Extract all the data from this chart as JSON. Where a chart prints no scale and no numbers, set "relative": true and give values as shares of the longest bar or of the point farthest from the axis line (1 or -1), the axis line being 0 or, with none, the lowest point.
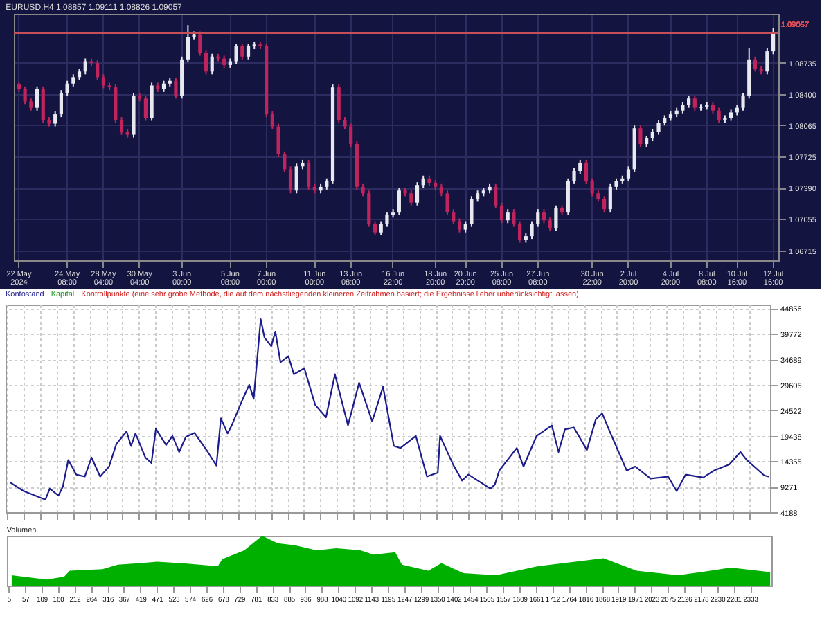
{
  "chart_data": [
    {
      "type": "candlestick",
      "title": "EURUSD,H4  1.08857 1.09111 1.08826 1.09057",
      "categories": [
        "22 May 2024",
        null,
        null,
        null,
        null,
        null,
        null,
        null,
        "24 May 08:00",
        null,
        null,
        null,
        null,
        null,
        "28 May 04:00",
        null,
        null,
        null,
        null,
        null,
        "30 May 04:00",
        null,
        null,
        null,
        null,
        null,
        null,
        "3 Jun 00:00",
        null,
        null,
        null,
        null,
        null,
        null,
        null,
        "5 Jun 08:00",
        null,
        null,
        null,
        null,
        null,
        "7 Jun 00:00",
        null,
        null,
        null,
        null,
        null,
        null,
        null,
        "11 Jun 00:00",
        null,
        null,
        null,
        null,
        null,
        "13 Jun 08:00",
        null,
        null,
        null,
        null,
        null,
        null,
        "16 Jun 22:00",
        null,
        null,
        null,
        null,
        null,
        null,
        "18 Jun 20:00",
        null,
        null,
        null,
        null,
        "20 Jun 20:00",
        null,
        null,
        null,
        null,
        null,
        "25 Jun 08:00",
        null,
        null,
        null,
        null,
        null,
        "27 Jun 08:00",
        null,
        null,
        null,
        null,
        null,
        null,
        null,
        null,
        "30 Jun 22:00",
        null,
        null,
        null,
        null,
        null,
        "2 Jul 20:00",
        null,
        null,
        null,
        null,
        null,
        null,
        "4 Jul 20:00",
        null,
        null,
        null,
        null,
        null,
        "8 Jul 08:00",
        null,
        null,
        null,
        null,
        "10 Jul 16:00",
        null,
        null,
        null,
        null,
        null,
        "12 Jul 16:00"
      ],
      "ohlc": [
        [
          1.085,
          1.0853,
          1.0842,
          1.0845
        ],
        [
          1.0845,
          1.0848,
          1.0829,
          1.0832
        ],
        [
          1.0832,
          1.0835,
          1.0822,
          1.0825
        ],
        [
          1.0825,
          1.0848,
          1.0822,
          1.0845
        ],
        [
          1.0845,
          1.0848,
          1.0809,
          1.0812
        ],
        [
          1.0812,
          1.0815,
          1.0805,
          1.0808
        ],
        [
          1.0808,
          1.0821,
          1.0805,
          1.0818
        ],
        [
          1.0818,
          1.0844,
          1.0815,
          1.0841
        ],
        [
          1.0841,
          1.0854,
          1.0838,
          1.0851
        ],
        [
          1.0851,
          1.0861,
          1.0848,
          1.0858
        ],
        [
          1.0858,
          1.0867,
          1.0855,
          1.0864
        ],
        [
          1.0864,
          1.0878,
          1.0861,
          1.0875
        ],
        [
          1.0875,
          1.0878,
          1.087,
          1.0873
        ],
        [
          1.0873,
          1.0876,
          1.0855,
          1.0858
        ],
        [
          1.0858,
          1.0861,
          1.0846,
          1.0849
        ],
        [
          1.0849,
          1.0852,
          1.0844,
          1.0847
        ],
        [
          1.0847,
          1.085,
          1.0809,
          1.0812
        ],
        [
          1.0812,
          1.0815,
          1.0796,
          1.0799
        ],
        [
          1.0799,
          1.0802,
          1.0793,
          1.0796
        ],
        [
          1.0796,
          1.0841,
          1.0793,
          1.0838
        ],
        [
          1.0838,
          1.0841,
          1.0832,
          1.0835
        ],
        [
          1.0835,
          1.0838,
          1.0811,
          1.0814
        ],
        [
          1.0814,
          1.0852,
          1.0811,
          1.0849
        ],
        [
          1.0849,
          1.0852,
          1.0842,
          1.0845
        ],
        [
          1.0845,
          1.0854,
          1.0842,
          1.0851
        ],
        [
          1.0851,
          1.0857,
          1.0848,
          1.0854
        ],
        [
          1.0854,
          1.0857,
          1.0835,
          1.0838
        ],
        [
          1.0838,
          1.088,
          1.0835,
          1.0877
        ],
        [
          1.0877,
          1.0914,
          1.0874,
          1.0901
        ],
        [
          1.0901,
          1.0907,
          1.0898,
          1.0904
        ],
        [
          1.0904,
          1.0907,
          1.0881,
          1.0884
        ],
        [
          1.0884,
          1.0887,
          1.0861,
          1.0864
        ],
        [
          1.0864,
          1.0883,
          1.0861,
          1.088
        ],
        [
          1.088,
          1.0883,
          1.0875,
          1.0878
        ],
        [
          1.0878,
          1.0881,
          1.0868,
          1.0871
        ],
        [
          1.0871,
          1.0878,
          1.0868,
          1.0875
        ],
        [
          1.0875,
          1.0894,
          1.0872,
          1.0891
        ],
        [
          1.0891,
          1.0894,
          1.0877,
          1.088
        ],
        [
          1.088,
          1.0894,
          1.0877,
          1.0891
        ],
        [
          1.0891,
          1.0896,
          1.0888,
          1.0893
        ],
        [
          1.0893,
          1.0896,
          1.0888,
          1.0891
        ],
        [
          1.0891,
          1.0894,
          1.0815,
          1.0818
        ],
        [
          1.0818,
          1.0821,
          1.0802,
          1.0805
        ],
        [
          1.0805,
          1.0808,
          1.0772,
          1.0775
        ],
        [
          1.0775,
          1.0778,
          1.0756,
          1.0759
        ],
        [
          1.0759,
          1.0762,
          1.0733,
          1.0736
        ],
        [
          1.0736,
          1.0765,
          1.0733,
          1.0762
        ],
        [
          1.0762,
          1.0769,
          1.0759,
          1.0766
        ],
        [
          1.0766,
          1.0769,
          1.0737,
          1.074
        ],
        [
          1.074,
          1.0743,
          1.0733,
          1.0736
        ],
        [
          1.0736,
          1.0743,
          1.0733,
          1.074
        ],
        [
          1.074,
          1.0749,
          1.0737,
          1.0746
        ],
        [
          1.0746,
          1.085,
          1.0743,
          1.0847
        ],
        [
          1.0847,
          1.085,
          1.0809,
          1.0812
        ],
        [
          1.0812,
          1.0815,
          1.0802,
          1.0805
        ],
        [
          1.0805,
          1.0808,
          1.0783,
          1.0786
        ],
        [
          1.0786,
          1.0789,
          1.0737,
          1.074
        ],
        [
          1.074,
          1.0743,
          1.073,
          1.0733
        ],
        [
          1.0733,
          1.0736,
          1.0697,
          1.07
        ],
        [
          1.07,
          1.0703,
          1.0688,
          1.0691
        ],
        [
          1.0691,
          1.0703,
          1.0688,
          1.07
        ],
        [
          1.07,
          1.0713,
          1.0697,
          1.071
        ],
        [
          1.071,
          1.0716,
          1.0707,
          1.0713
        ],
        [
          1.0713,
          1.0739,
          1.071,
          1.0736
        ],
        [
          1.0736,
          1.0739,
          1.073,
          1.0733
        ],
        [
          1.0733,
          1.0736,
          1.072,
          1.0723
        ],
        [
          1.0723,
          1.0745,
          1.072,
          1.0742
        ],
        [
          1.0742,
          1.0752,
          1.0739,
          1.0749
        ],
        [
          1.0749,
          1.0752,
          1.0741,
          1.0744
        ],
        [
          1.0744,
          1.0747,
          1.0737,
          1.074
        ],
        [
          1.074,
          1.0743,
          1.073,
          1.0733
        ],
        [
          1.0733,
          1.0736,
          1.071,
          1.0713
        ],
        [
          1.0713,
          1.0716,
          1.07,
          1.0703
        ],
        [
          1.0703,
          1.0706,
          1.0691,
          1.0694
        ],
        [
          1.0694,
          1.0703,
          1.0691,
          1.07
        ],
        [
          1.07,
          1.073,
          1.0697,
          1.0727
        ],
        [
          1.0727,
          1.0736,
          1.0724,
          1.0733
        ],
        [
          1.0733,
          1.0739,
          1.073,
          1.0736
        ],
        [
          1.0736,
          1.0743,
          1.0733,
          1.074
        ],
        [
          1.074,
          1.0743,
          1.0717,
          1.072
        ],
        [
          1.072,
          1.0723,
          1.0701,
          1.0704
        ],
        [
          1.0704,
          1.0716,
          1.0701,
          1.0713
        ],
        [
          1.0713,
          1.0716,
          1.0697,
          1.07
        ],
        [
          1.07,
          1.0703,
          1.068,
          1.0683
        ],
        [
          1.0683,
          1.069,
          1.068,
          1.0687
        ],
        [
          1.0687,
          1.0703,
          1.0684,
          1.07
        ],
        [
          1.07,
          1.0716,
          1.0697,
          1.0713
        ],
        [
          1.0713,
          1.0716,
          1.0701,
          1.0704
        ],
        [
          1.0704,
          1.0707,
          1.0693,
          1.0696
        ],
        [
          1.0696,
          1.072,
          1.0693,
          1.0717
        ],
        [
          1.0717,
          1.072,
          1.071,
          1.0713
        ],
        [
          1.0713,
          1.0749,
          1.071,
          1.0746
        ],
        [
          1.0746,
          1.076,
          1.0743,
          1.0757
        ],
        [
          1.0757,
          1.0769,
          1.0754,
          1.0766
        ],
        [
          1.0766,
          1.0769,
          1.0743,
          1.0746
        ],
        [
          1.0746,
          1.0749,
          1.073,
          1.0733
        ],
        [
          1.0733,
          1.0736,
          1.0724,
          1.0727
        ],
        [
          1.0727,
          1.073,
          1.0713,
          1.0716
        ],
        [
          1.0716,
          1.0743,
          1.0713,
          1.074
        ],
        [
          1.074,
          1.0749,
          1.0737,
          1.0746
        ],
        [
          1.0746,
          1.0752,
          1.0743,
          1.0749
        ],
        [
          1.0749,
          1.0762,
          1.0746,
          1.0759
        ],
        [
          1.0759,
          1.0806,
          1.0756,
          1.0803
        ],
        [
          1.0803,
          1.0806,
          1.0783,
          1.0786
        ],
        [
          1.0786,
          1.0795,
          1.0783,
          1.0792
        ],
        [
          1.0792,
          1.0802,
          1.0789,
          1.0799
        ],
        [
          1.0799,
          1.0812,
          1.0796,
          1.0809
        ],
        [
          1.0809,
          1.0817,
          1.0806,
          1.0814
        ],
        [
          1.0814,
          1.0821,
          1.0811,
          1.0818
        ],
        [
          1.0818,
          1.0825,
          1.0815,
          1.0822
        ],
        [
          1.0822,
          1.0831,
          1.0819,
          1.0828
        ],
        [
          1.0828,
          1.0838,
          1.0825,
          1.0835
        ],
        [
          1.0835,
          1.0838,
          1.0822,
          1.0825
        ],
        [
          1.0825,
          1.0829,
          1.0822,
          1.0826
        ],
        [
          1.0826,
          1.0831,
          1.0823,
          1.0828
        ],
        [
          1.0828,
          1.0831,
          1.0819,
          1.0822
        ],
        [
          1.0822,
          1.0825,
          1.0809,
          1.0812
        ],
        [
          1.0812,
          1.0817,
          1.0809,
          1.0814
        ],
        [
          1.0814,
          1.0823,
          1.0811,
          1.082
        ],
        [
          1.082,
          1.0828,
          1.0817,
          1.0825
        ],
        [
          1.0825,
          1.0841,
          1.0822,
          1.0838
        ],
        [
          1.0838,
          1.0889,
          1.0835,
          1.0877
        ],
        [
          1.0877,
          1.088,
          1.0864,
          1.0867
        ],
        [
          1.0867,
          1.087,
          1.0861,
          1.0864
        ],
        [
          1.0864,
          1.0889,
          1.0861,
          1.08857
        ],
        [
          1.08857,
          1.09111,
          1.08826,
          1.09057
        ]
      ],
      "ylim": [
        1.0661,
        1.0926
      ],
      "yticks": [
        1.06715,
        1.07055,
        {
          "value": 1.0739,
          "label": "1.07390"
        },
        1.07725,
        1.08065,
        {
          "value": 1.084,
          "label": "1.08400"
        },
        1.08735
      ],
      "ref_lines": [
        {
          "axis": "y",
          "value": 1.09057,
          "label": "1.09057",
          "color": "#c8505a"
        }
      ],
      "grid": true
    },
    {
      "type": "line",
      "x": [
        15,
        57,
        125,
        139,
        166,
        180,
        197,
        222,
        249,
        270,
        297,
        325,
        348,
        380,
        394,
        408,
        439,
        458,
        472,
        504,
        524,
        545,
        566,
        593,
        635,
        662,
        676,
        697,
        710,
        745,
        765,
        779,
        801,
        813,
        834,
        847,
        863,
        888,
        905,
        938,
        972,
        1006,
        1034,
        1075,
        1110,
        1151,
        1185,
        1219,
        1240,
        1288,
        1323,
        1357,
        1364,
        1405,
        1433,
        1453,
        1522,
        1536,
        1550,
        1605,
        1626,
        1667,
        1715,
        1736,
        1756,
        1784,
        1825,
        1853,
        1873,
        1894,
        1950,
        1977,
        2025,
        2080,
        2107,
        2135,
        2190,
        2224,
        2272,
        2307,
        2327,
        2382,
        2396
      ],
      "series": [
        {
          "name": "Kontostand",
          "color": "#1c1c8c",
          "values": [
            10100,
            8400,
            6700,
            8900,
            7500,
            9300,
            14600,
            11700,
            11300,
            15100,
            11300,
            13300,
            17800,
            20300,
            17400,
            19900,
            15100,
            14000,
            20800,
            17600,
            19400,
            16200,
            19200,
            20000,
            16200,
            13500,
            22900,
            19900,
            21500,
            26800,
            29600,
            26800,
            42700,
            39000,
            37300,
            40200,
            34100,
            35300,
            31700,
            32900,
            25600,
            23100,
            31700,
            21500,
            30000,
            22300,
            29200,
            17400,
            17000,
            19400,
            11300,
            12100,
            19400,
            13700,
            10500,
            11700,
            8900,
            9700,
            12500,
            17000,
            13300,
            19400,
            21500,
            16200,
            20700,
            21100,
            16600,
            22700,
            23900,
            20700,
            12500,
            13300,
            10900,
            11300,
            8400,
            11700,
            11100,
            12500,
            13700,
            16200,
            14600,
            11500,
            11300
          ]
        }
      ],
      "annotations": [
        "Kapital",
        "Kontrollpunkte (eine sehr grobe Methode, die auf dem nächstliegenden kleineren Zeitrahmen basiert; die Ergebnisse lieber unberücksichtigt lassen)"
      ],
      "xlim": [
        0,
        2400
      ],
      "xticks": [
        5,
        57,
        109,
        160,
        212,
        264,
        316,
        367,
        419,
        471,
        523,
        574,
        626,
        678,
        729,
        781,
        833,
        885,
        936,
        988,
        1040,
        1092,
        1143,
        1195,
        1247,
        1299,
        1350,
        1402,
        1454,
        1505,
        1557,
        1609,
        1661,
        1712,
        1764,
        1816,
        1868,
        1919,
        1971,
        2023,
        2075,
        2126,
        2178,
        2230,
        2281,
        2333
      ],
      "ylim": [
        4188,
        45600
      ],
      "yticks": [
        4188,
        9271,
        14355,
        19438,
        24522,
        29605,
        34689,
        39772,
        44856
      ],
      "tick_labels": "y",
      "grid": true
    },
    {
      "type": "area",
      "title": "Volumen",
      "relative": true,
      "x": [
        15,
        125,
        180,
        197,
        300,
        348,
        420,
        472,
        566,
        662,
        676,
        745,
        801,
        850,
        905,
        972,
        1034,
        1110,
        1151,
        1219,
        1240,
        1323,
        1364,
        1433,
        1536,
        1667,
        1784,
        1873,
        1977,
        2107,
        2190,
        2272,
        2396
      ],
      "series": [
        {
          "color": "#00b000",
          "values": [
            0.21,
            0.12,
            0.18,
            0.3,
            0.33,
            0.42,
            0.45,
            0.48,
            0.44,
            0.39,
            0.53,
            0.71,
            1,
            0.85,
            0.81,
            0.71,
            0.75,
            0.71,
            0.62,
            0.67,
            0.42,
            0.3,
            0.45,
            0.25,
            0.21,
            0.39,
            0.48,
            0.55,
            0.3,
            0.21,
            0.28,
            0.36,
            0.27
          ]
        }
      ],
      "xlim": [
        0,
        2400
      ],
      "xticks": [
        5,
        57,
        109,
        160,
        212,
        264,
        316,
        367,
        419,
        471,
        523,
        574,
        626,
        678,
        729,
        781,
        833,
        885,
        936,
        988,
        1040,
        1092,
        1143,
        1195,
        1247,
        1299,
        1350,
        1402,
        1454,
        1505,
        1557,
        1609,
        1661,
        1712,
        1764,
        1816,
        1868,
        1919,
        1971,
        2023,
        2075,
        2126,
        2178,
        2230,
        2281,
        2333
      ],
      "tick_labels": "x"
    }
  ]
}
